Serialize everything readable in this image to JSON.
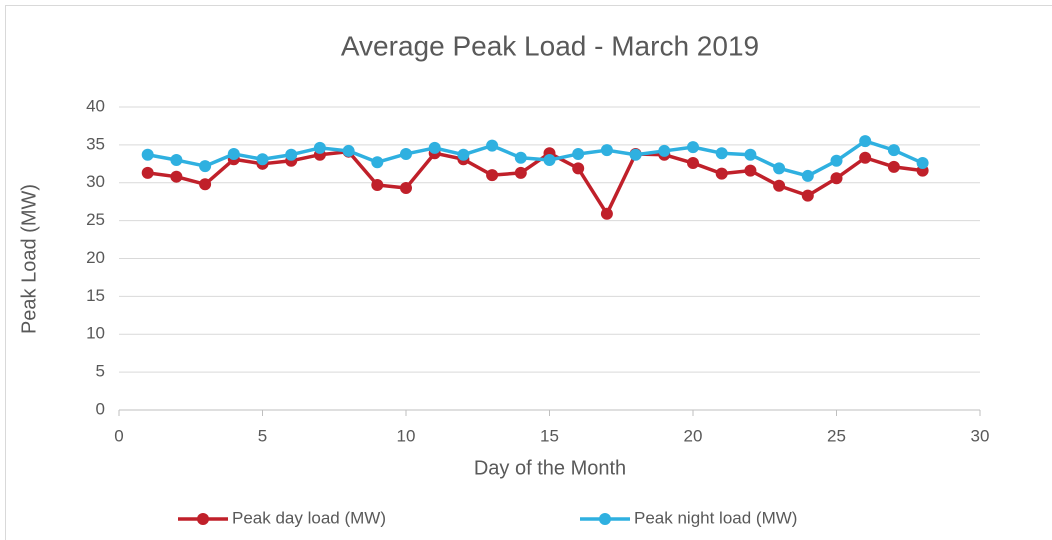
{
  "chart_data": {
    "type": "line",
    "title": "Average Peak Load - March 2019",
    "xlabel": "Day of the Month",
    "ylabel": "Peak Load (MW)",
    "x": [
      1,
      2,
      3,
      4,
      5,
      6,
      7,
      8,
      9,
      10,
      11,
      12,
      13,
      14,
      15,
      16,
      17,
      18,
      19,
      20,
      21,
      22,
      23,
      24,
      25,
      26,
      27,
      28
    ],
    "series": [
      {
        "name": "Peak day load (MW)",
        "color": "#c0202a",
        "values": [
          31.3,
          30.8,
          29.8,
          33.1,
          32.5,
          32.9,
          33.7,
          34.1,
          29.7,
          29.3,
          33.9,
          33.1,
          31.0,
          31.3,
          33.9,
          31.9,
          25.9,
          33.8,
          33.7,
          32.6,
          31.2,
          31.6,
          29.6,
          28.3,
          30.6,
          33.3,
          32.1,
          31.6
        ]
      },
      {
        "name": "Peak night load (MW)",
        "color": "#2fb0e0",
        "values": [
          33.7,
          33.0,
          32.2,
          33.8,
          33.1,
          33.7,
          34.6,
          34.2,
          32.7,
          33.8,
          34.6,
          33.7,
          34.9,
          33.3,
          33.0,
          33.8,
          34.3,
          33.7,
          34.2,
          34.7,
          33.9,
          33.7,
          31.9,
          30.9,
          32.9,
          35.5,
          34.3,
          32.6
        ]
      }
    ],
    "xlim": [
      0,
      30
    ],
    "xticks": [
      0,
      5,
      10,
      15,
      20,
      25,
      30
    ],
    "ylim": [
      0,
      40
    ],
    "yticks": [
      0,
      5,
      10,
      15,
      20,
      25,
      30,
      35,
      40
    ],
    "grid": true,
    "legend": "bottom"
  }
}
